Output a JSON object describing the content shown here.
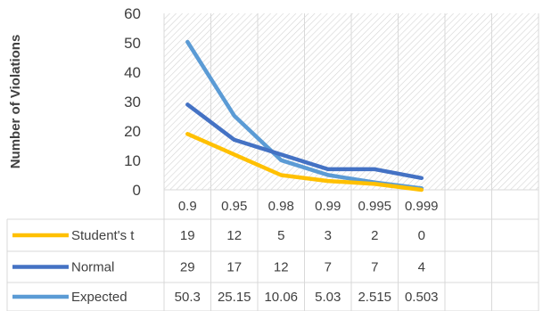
{
  "chart_data": {
    "type": "line",
    "ylabel": "Number of Violations",
    "ylim": [
      0,
      60
    ],
    "yticks": [
      0,
      10,
      20,
      30,
      40,
      50,
      60
    ],
    "grid": false,
    "plot_background": "diagonal hatch",
    "data_table": true,
    "categories": [
      "0.9",
      "0.95",
      "0.98",
      "0.99",
      "0.995",
      "0.999"
    ],
    "series": [
      {
        "name": "Student's t",
        "color": "#FFC000",
        "values": [
          19,
          12,
          5,
          3,
          2,
          0
        ],
        "labels": [
          "19",
          "12",
          "5",
          "3",
          "2",
          "0"
        ]
      },
      {
        "name": "Normal",
        "color": "#4472C4",
        "values": [
          29,
          17,
          12,
          7,
          7,
          4
        ],
        "labels": [
          "29",
          "17",
          "12",
          "7",
          "7",
          "4"
        ]
      },
      {
        "name": "Expected",
        "color": "#5B9BD5",
        "values": [
          50.3,
          25.15,
          10.06,
          5.03,
          2.515,
          0.503
        ],
        "labels": [
          "50.3",
          "25.15",
          "10.06",
          "5.03",
          "2.515",
          "0.503"
        ]
      }
    ]
  }
}
